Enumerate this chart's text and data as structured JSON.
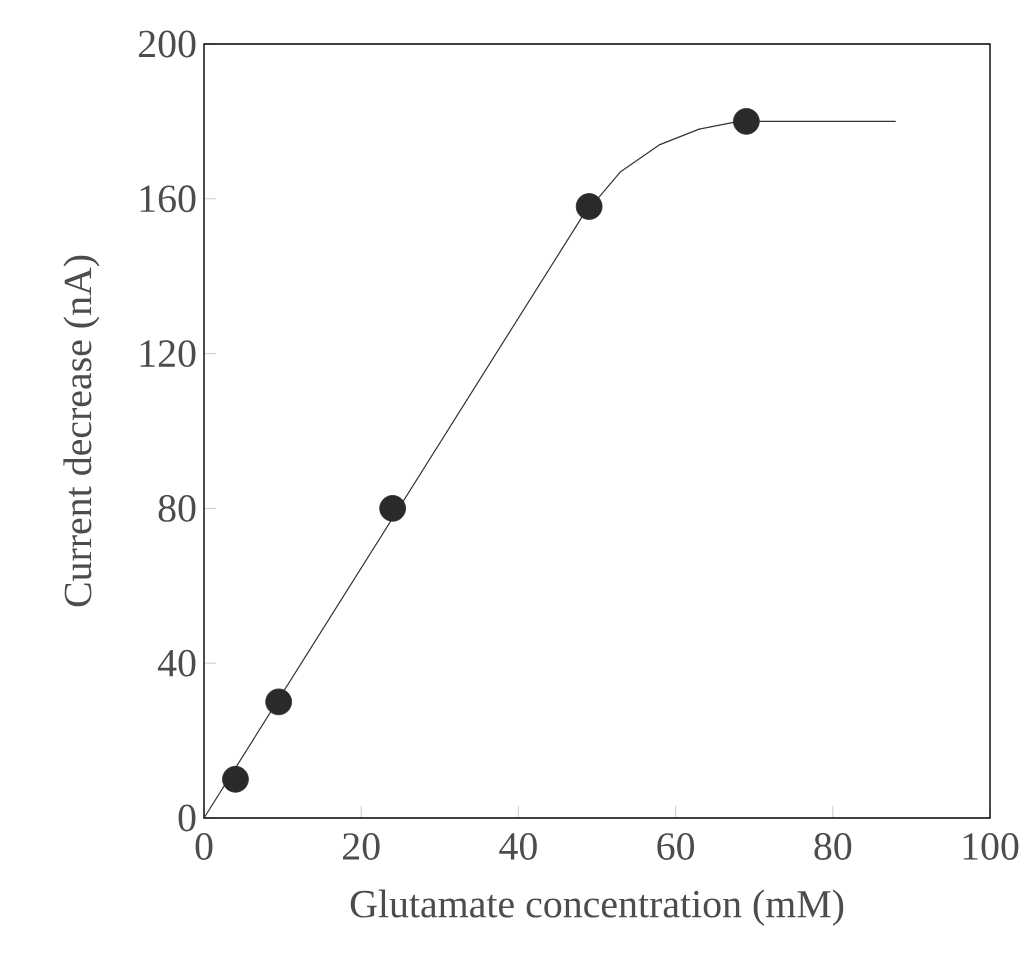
{
  "chart_data": {
    "type": "scatter",
    "xlabel": "Glutamate concentration (mM)",
    "ylabel": "Current decrease (nA)",
    "xlim": [
      0,
      100
    ],
    "ylim": [
      0,
      200
    ],
    "xticks": [
      0,
      20,
      40,
      60,
      80,
      100
    ],
    "yticks": [
      0,
      40,
      80,
      120,
      160,
      200
    ],
    "series": [
      {
        "color": "#2a2a2a",
        "marker": "circle",
        "x": [
          4,
          9.5,
          24,
          49,
          69
        ],
        "values": [
          10,
          30,
          80,
          158,
          180
        ]
      },
      {
        "type": "line",
        "color": "#333333",
        "line_style": "solid",
        "x": [
          0,
          48,
          53,
          58,
          63,
          68,
          88
        ],
        "values": [
          0,
          155,
          167,
          174,
          178,
          180,
          180
        ]
      }
    ]
  }
}
